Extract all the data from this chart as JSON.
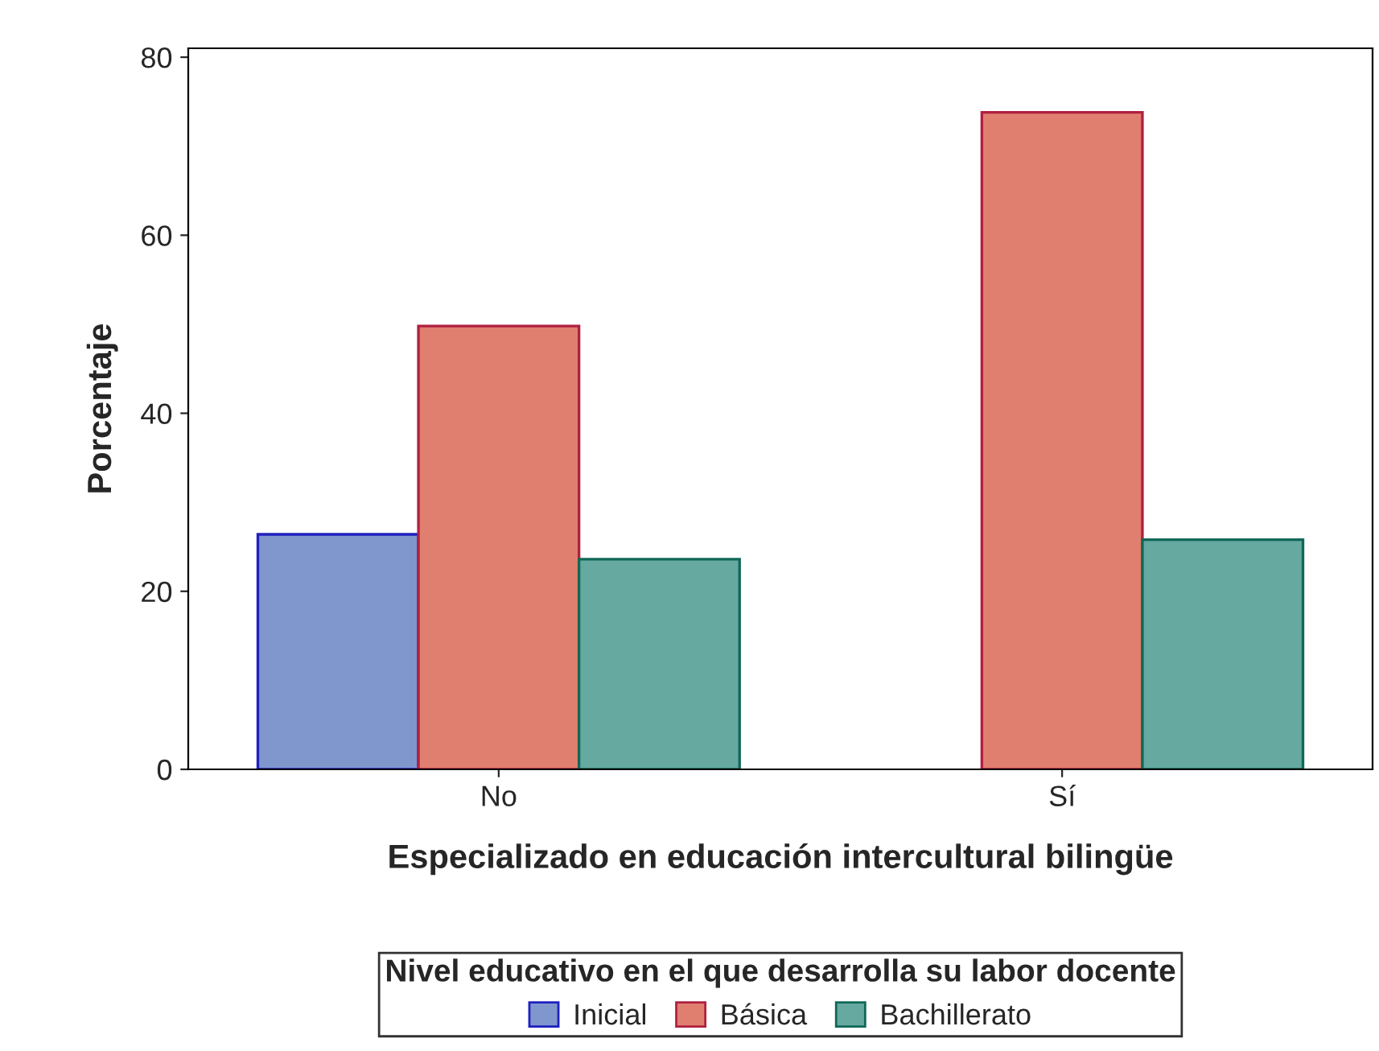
{
  "chart_data": {
    "type": "bar",
    "xlabel": "Especializado en educación intercultural bilingüe",
    "ylabel": "Porcentaje",
    "legend_title": "Nivel educativo en el que desarrolla su labor docente",
    "categories": [
      "No",
      "Sí"
    ],
    "series": [
      {
        "name": "Inicial",
        "color": "#7f97cd",
        "values": [
          26.4,
          null
        ]
      },
      {
        "name": "Básica",
        "color": "#e07f6f",
        "values": [
          49.8,
          73.8
        ]
      },
      {
        "name": "Bachillerato",
        "color": "#66a9a0",
        "values": [
          23.6,
          25.8
        ]
      }
    ],
    "ylim": [
      0,
      81
    ],
    "yticks": [
      0,
      20,
      40,
      60,
      80
    ],
    "grid": false,
    "legend": "bottom"
  }
}
